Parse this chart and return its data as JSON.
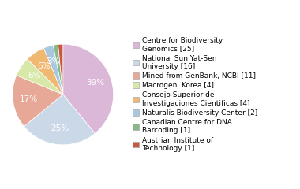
{
  "labels": [
    "Centre for Biodiversity\nGenomics [25]",
    "National Sun Yat-Sen\nUniversity [16]",
    "Mined from GenBank, NCBI [11]",
    "Macrogen, Korea [4]",
    "Consejo Superior de\nInvestigaciones Cientificas [4]",
    "Naturalis Biodiversity Center [2]",
    "Canadian Centre for DNA\nBarcoding [1]",
    "Austrian Institute of\nTechnology [1]"
  ],
  "values": [
    25,
    16,
    11,
    4,
    4,
    2,
    1,
    1
  ],
  "colors": [
    "#dbb8d8",
    "#cad8e8",
    "#e8a898",
    "#d8e8a8",
    "#f0b870",
    "#a8c8e0",
    "#88b888",
    "#c85840"
  ],
  "background_color": "#ffffff",
  "label_fontsize": 6.5,
  "pct_fontsize": 7.5
}
